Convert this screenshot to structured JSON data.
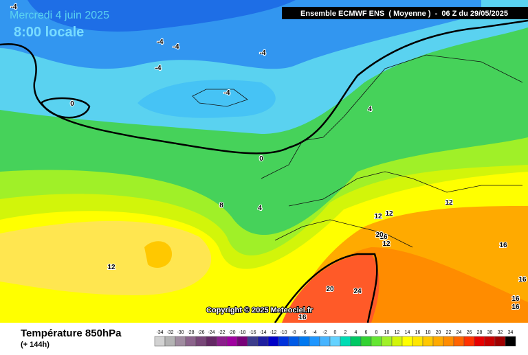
{
  "header": {
    "date": "Mercredi 4 juin 2025",
    "time": "8:00 locale",
    "model": "Ensemble ECMWF ENS  ( Moyenne )  -  06 Z du 29/05/2025"
  },
  "copyright": "Copyright © 2025 Meteociel.fr",
  "footer": {
    "title": "Température 850hPa",
    "subtitle": "(+ 144h)"
  },
  "contour_labels": [
    -4,
    -4,
    -4,
    -4,
    -4,
    -4,
    0,
    0,
    4,
    8,
    4,
    12,
    12,
    12,
    12,
    16,
    16,
    12,
    20,
    20,
    24,
    16,
    16,
    16,
    16
  ],
  "colorbar": {
    "values": [
      -34,
      -32,
      -30,
      -28,
      -26,
      -24,
      -22,
      -20,
      -18,
      -16,
      -14,
      -12,
      -10,
      -8,
      -6,
      -4,
      -2,
      0,
      2,
      4,
      6,
      8,
      10,
      12,
      14,
      16,
      18,
      20,
      22,
      24,
      26,
      28,
      30,
      32,
      34
    ],
    "colors": [
      "#d2d2d2",
      "#b4b4b4",
      "#a08ca0",
      "#8c648c",
      "#784678",
      "#642864",
      "#8c1e8c",
      "#a000a0",
      "#780078",
      "#3c3c8c",
      "#1e1ea0",
      "#0000c8",
      "#0032dc",
      "#005ae6",
      "#0078f0",
      "#1e96ff",
      "#46b4ff",
      "#64d2ff",
      "#00dcb4",
      "#00c864",
      "#32d232",
      "#64e632",
      "#a0f028",
      "#d2f50a",
      "#ffff00",
      "#ffe600",
      "#ffc800",
      "#ffaa00",
      "#ff8c00",
      "#ff6400",
      "#ff3200",
      "#e60000",
      "#c80000",
      "#a00000",
      "#000000"
    ]
  }
}
